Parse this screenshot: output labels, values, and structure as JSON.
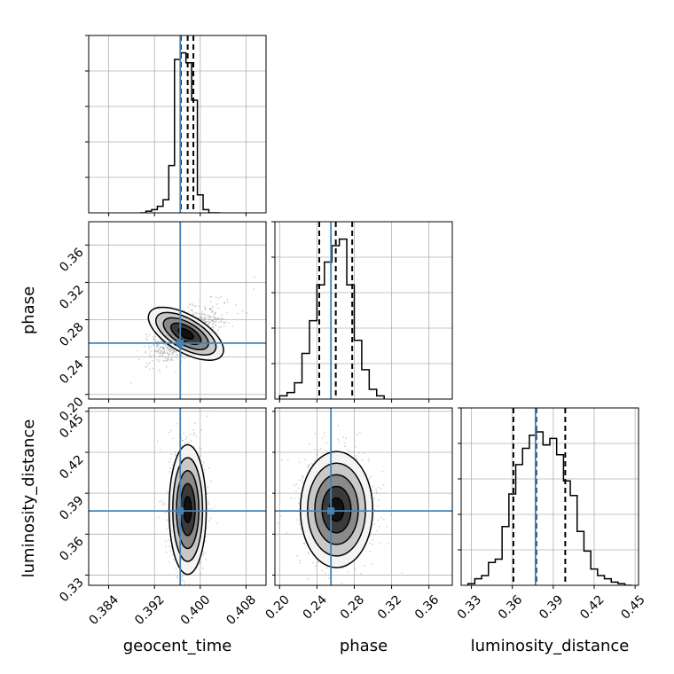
{
  "chart_data": {
    "type": "corner",
    "parameters": [
      "geocent_time",
      "phase",
      "luminosity_distance"
    ],
    "axis_labels": {
      "geocent_time": "geocent_time",
      "phase": "phase",
      "luminosity_distance": "luminosity_distance"
    },
    "ranges": {
      "geocent_time": [
        0.3805,
        0.4115
      ],
      "phase": [
        0.195,
        0.385
      ],
      "luminosity_distance": [
        0.3225,
        0.4525
      ]
    },
    "ticks": {
      "geocent_time": [
        "0.384",
        "0.392",
        "0.400",
        "0.408"
      ],
      "phase_x": [
        "0.20",
        "0.24",
        "0.28",
        "0.32",
        "0.36"
      ],
      "phase_y": [
        "0.20",
        "0.24",
        "0.28",
        "0.32",
        "0.36"
      ],
      "luminosity_distance_x": [
        "0.33",
        "0.36",
        "0.39",
        "0.42",
        "0.45"
      ],
      "luminosity_distance_y": [
        "0.33",
        "0.36",
        "0.39",
        "0.42",
        "0.45"
      ]
    },
    "truths": {
      "geocent_time": 0.3965,
      "phase": 0.255,
      "luminosity_distance": 0.377
    },
    "quantiles": {
      "geocent_time": [
        0.3966,
        0.3978,
        0.3988
      ],
      "phase": [
        0.2425,
        0.2602,
        0.2778
      ],
      "luminosity_distance": [
        0.3608,
        0.3775,
        0.3988
      ]
    },
    "histograms": {
      "geocent_time": {
        "edges": [
          0.3895,
          0.3905,
          0.3915,
          0.3925,
          0.3935,
          0.3945,
          0.3955,
          0.3965,
          0.3975,
          0.3985,
          0.3995,
          0.4005,
          0.4015,
          0.4025,
          0.4035
        ],
        "counts": [
          0,
          0.01,
          0.02,
          0.04,
          0.08,
          0.29,
          0.94,
          0.98,
          0.92,
          0.69,
          0.11,
          0.02,
          0,
          0
        ]
      },
      "phase": {
        "edges": [
          0.2,
          0.208,
          0.216,
          0.224,
          0.232,
          0.24,
          0.248,
          0.256,
          0.264,
          0.272,
          0.28,
          0.288,
          0.296,
          0.304,
          0.312
        ],
        "counts": [
          0.02,
          0.04,
          0.1,
          0.28,
          0.48,
          0.7,
          0.84,
          0.94,
          0.98,
          0.7,
          0.36,
          0.18,
          0.06,
          0.02
        ]
      },
      "luminosity_distance": {
        "edges": [
          0.3275,
          0.3325,
          0.3375,
          0.3425,
          0.3475,
          0.3525,
          0.3575,
          0.3625,
          0.3675,
          0.3725,
          0.3775,
          0.3825,
          0.3875,
          0.3925,
          0.3975,
          0.4025,
          0.4075,
          0.4125,
          0.4175,
          0.4225,
          0.4275,
          0.4325,
          0.4375,
          0.4425,
          0.4475
        ],
        "counts": [
          0.01,
          0.04,
          0.06,
          0.14,
          0.16,
          0.36,
          0.56,
          0.74,
          0.84,
          0.92,
          0.94,
          0.86,
          0.9,
          0.8,
          0.64,
          0.55,
          0.33,
          0.21,
          0.1,
          0.06,
          0.04,
          0.02,
          0.01,
          0
        ]
      }
    },
    "contours_2d": {
      "geocent_time_vs_phase": {
        "center": [
          0.3975,
          0.265
        ],
        "scale": [
          0.0013,
          0.018
        ],
        "rotation_deg": 60
      },
      "geocent_time_vs_luminosity_distance": {
        "center": [
          0.3978,
          0.378
        ],
        "scale": [
          0.0013,
          0.019
        ],
        "rotation_deg": 0
      },
      "phase_vs_luminosity_distance": {
        "center": [
          0.261,
          0.378
        ],
        "scale": [
          0.0155,
          0.017
        ],
        "rotation_deg": 0
      }
    },
    "grid": true,
    "colors": {
      "truth": "#4682b4",
      "hist_line": "#000000",
      "quantile": "#000000",
      "grid": "#b0b0b0",
      "points": "#808080"
    }
  }
}
